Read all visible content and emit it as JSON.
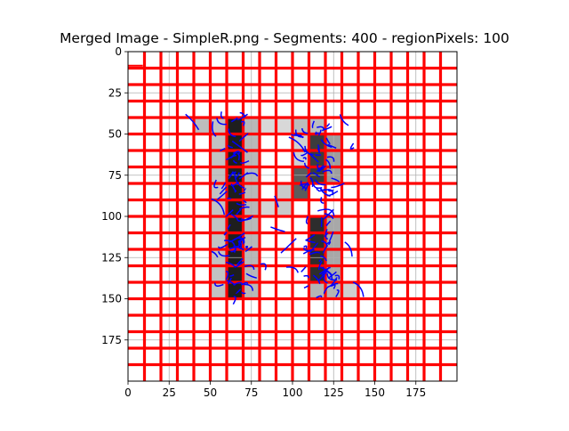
{
  "chart_data": {
    "type": "image",
    "title": "Merged Image - SimpleR.png - Segments: 400 - regionPixels: 100",
    "x": {
      "ticks": [
        0,
        25,
        50,
        75,
        100,
        125,
        150,
        175
      ],
      "lim": [
        0,
        200
      ]
    },
    "y": {
      "ticks": [
        0,
        25,
        50,
        75,
        100,
        125,
        150,
        175
      ],
      "lim": [
        200,
        0
      ],
      "inverted": true
    },
    "grid": true,
    "image_size": [
      200,
      200
    ],
    "segment_grid_spacing": 10,
    "segment_line_offset": 0,
    "letter_regions": [
      {
        "x0": 40,
        "x1": 50,
        "y0": 40,
        "y1": 50,
        "shade": "#bdbdbd"
      },
      {
        "x0": 50,
        "x1": 60,
        "y0": 40,
        "y1": 150,
        "shade": "#c2c2c2"
      },
      {
        "x0": 60,
        "x1": 70,
        "y0": 40,
        "y1": 150,
        "shade": "#1e1e1e"
      },
      {
        "x0": 70,
        "x1": 80,
        "y0": 40,
        "y1": 150,
        "shade": "#b8b8b8"
      },
      {
        "x0": 80,
        "x1": 100,
        "y0": 40,
        "y1": 50,
        "shade": "#d8d8d8"
      },
      {
        "x0": 100,
        "x1": 110,
        "y0": 40,
        "y1": 50,
        "shade": "#bcbcbc"
      },
      {
        "x0": 110,
        "x1": 120,
        "y0": 40,
        "y1": 50,
        "shade": "#bdbdbd"
      },
      {
        "x0": 100,
        "x1": 110,
        "y0": 50,
        "y1": 70,
        "shade": "#d0d0d0"
      },
      {
        "x0": 110,
        "x1": 120,
        "y0": 50,
        "y1": 80,
        "shade": "#3c3c3c"
      },
      {
        "x0": 120,
        "x1": 130,
        "y0": 50,
        "y1": 80,
        "shade": "#9e9e9e"
      },
      {
        "x0": 100,
        "x1": 110,
        "y0": 70,
        "y1": 90,
        "shade": "#5c5c5c"
      },
      {
        "x0": 90,
        "x1": 100,
        "y0": 80,
        "y1": 100,
        "shade": "#c9c9c9"
      },
      {
        "x0": 80,
        "x1": 90,
        "y0": 90,
        "y1": 100,
        "shade": "#d4d4d4"
      },
      {
        "x0": 110,
        "x1": 120,
        "y0": 100,
        "y1": 140,
        "shade": "#2d2d2d"
      },
      {
        "x0": 120,
        "x1": 130,
        "y0": 100,
        "y1": 140,
        "shade": "#a8a8a8"
      },
      {
        "x0": 110,
        "x1": 130,
        "y0": 140,
        "y1": 150,
        "shade": "#b4b4b4"
      },
      {
        "x0": 130,
        "x1": 140,
        "y0": 140,
        "y1": 150,
        "shade": "#cfcfcf"
      }
    ],
    "colors": {
      "segment_lines": "#ff0000",
      "boundary_curves": "#0000ff",
      "grid": "#b0b0b0"
    }
  }
}
